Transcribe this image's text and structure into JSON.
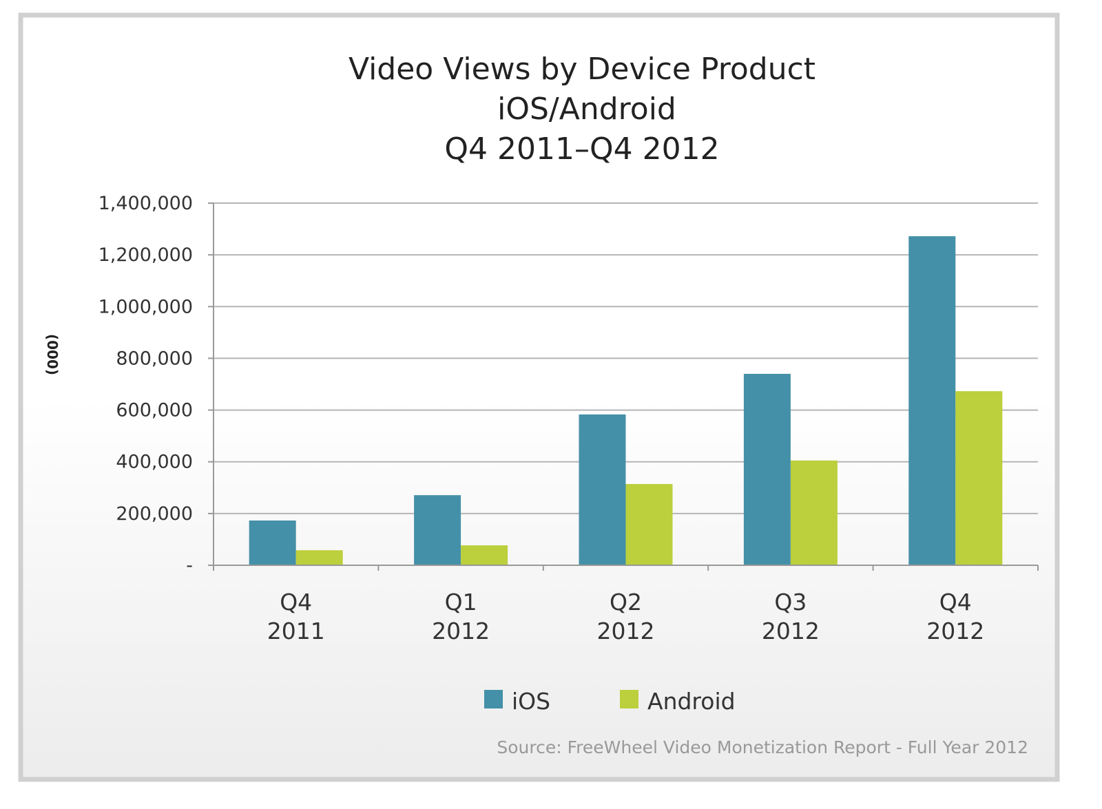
{
  "chart_data": {
    "type": "bar",
    "title": [
      "Video Views by Device Product",
      "iOS/Android",
      "Q4 2011–Q4 2012"
    ],
    "ylabel": "(000)",
    "xlabel": "",
    "categories": [
      [
        "Q4",
        "2011"
      ],
      [
        "Q1",
        "2012"
      ],
      [
        "Q2",
        "2012"
      ],
      [
        "Q3",
        "2012"
      ],
      [
        "Q4",
        "2012"
      ]
    ],
    "ylim": [
      0,
      1400000
    ],
    "yticks": [
      0,
      200000,
      400000,
      600000,
      800000,
      1000000,
      1200000,
      1400000
    ],
    "ytick_labels": [
      "-",
      "200,000",
      "400,000",
      "600,000",
      "800,000",
      "1,000,000",
      "1,200,000",
      "1,400,000"
    ],
    "grid": true,
    "legend_position": "bottom",
    "series": [
      {
        "name": "iOS",
        "color": "#4490a8",
        "values": [
          173000,
          271000,
          583000,
          740000,
          1272000
        ]
      },
      {
        "name": "Android",
        "color": "#bccf3c",
        "values": [
          58000,
          77000,
          314000,
          405000,
          673000
        ]
      }
    ],
    "source": "Source: FreeWheel Video Monetization Report - Full Year 2012"
  }
}
